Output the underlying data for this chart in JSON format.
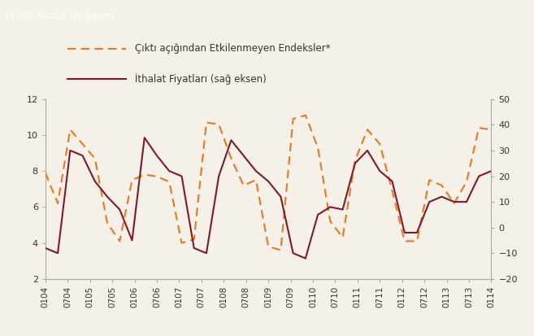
{
  "background_color": "#f5f0e8",
  "header_color": "#8b1a2a",
  "header_text": "(Yıllık Yüzde Değişim)",
  "legend1_label": "Çıktı açığından Etkilenmeyen Endeksler*",
  "legend2_label": "İthalat Fiyatları (sağ eksen)",
  "left_ylim": [
    2,
    12
  ],
  "right_ylim": [
    -20,
    50
  ],
  "left_yticks": [
    2,
    4,
    6,
    8,
    10,
    12
  ],
  "right_yticks": [
    -20,
    -10,
    0,
    10,
    20,
    30,
    40,
    50
  ],
  "line1_color": "#E87722",
  "line2_color": "#7B1B2A",
  "xtick_labels": [
    "0104",
    "0704",
    "0105",
    "0705",
    "0106",
    "0706",
    "0107",
    "0707",
    "0108",
    "0708",
    "0109",
    "0709",
    "0110",
    "0710",
    "0111",
    "0711",
    "0112",
    "0712",
    "0113",
    "0713",
    "0114"
  ],
  "line1_y": [
    7.9,
    6.2,
    10.3,
    9.5,
    8.7,
    5.1,
    4.1,
    7.5,
    7.8,
    7.7,
    7.4,
    4.0,
    4.2,
    10.7,
    10.6,
    8.7,
    7.2,
    7.5,
    3.8,
    3.6,
    10.9,
    11.1,
    9.3,
    5.2,
    4.3,
    8.6,
    10.3,
    9.5,
    6.9,
    4.1,
    4.1,
    7.5,
    7.2,
    6.2,
    7.4,
    10.4,
    10.3
  ],
  "line2_y": [
    -8,
    -10,
    30,
    28,
    18,
    12,
    7,
    -5,
    35,
    28,
    22,
    20,
    -8,
    -10,
    20,
    34,
    28,
    22,
    18,
    12,
    -10,
    -12,
    5,
    8,
    7,
    25,
    30,
    22,
    18,
    -2,
    -2,
    10,
    12,
    10,
    10,
    20,
    22
  ]
}
